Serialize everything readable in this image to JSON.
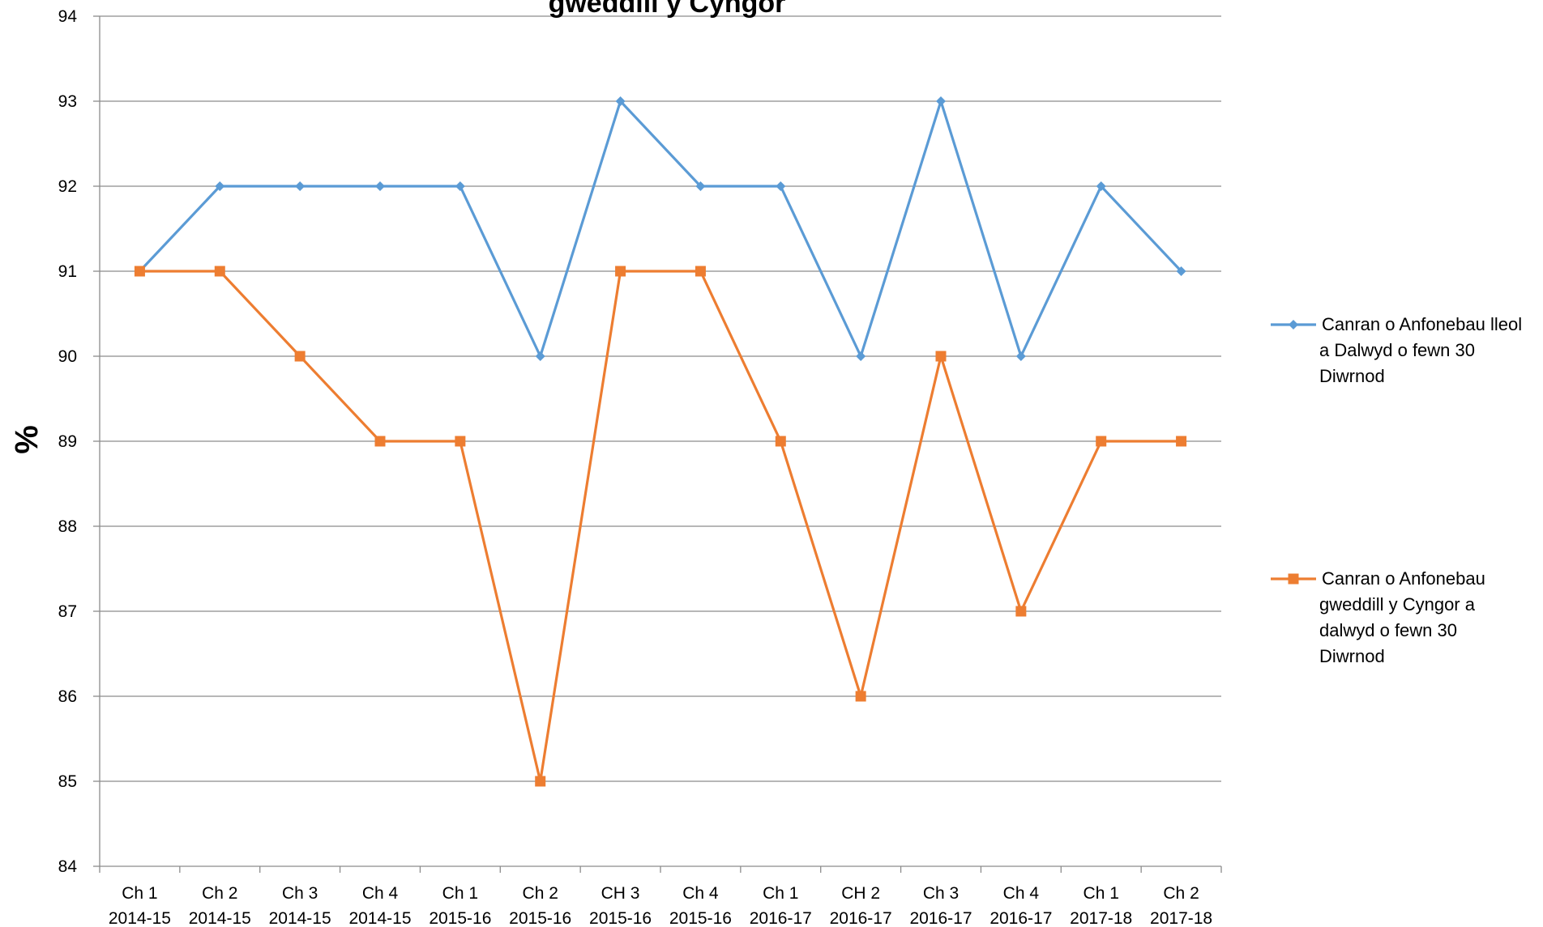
{
  "chart_data": {
    "type": "line",
    "title": "gweddill y Cyngor",
    "xlabel": "",
    "ylabel": "%",
    "ylim": [
      84,
      94
    ],
    "yticks": [
      84,
      85,
      86,
      87,
      88,
      89,
      90,
      91,
      92,
      93,
      94
    ],
    "grid": true,
    "legend_position": "right",
    "categories": [
      [
        "Ch 1",
        "2014-15"
      ],
      [
        "Ch 2",
        "2014-15"
      ],
      [
        "Ch 3",
        "2014-15"
      ],
      [
        "Ch 4",
        "2014-15"
      ],
      [
        "Ch 1",
        "2015-16"
      ],
      [
        "Ch 2",
        "2015-16"
      ],
      [
        "CH 3",
        "2015-16"
      ],
      [
        "Ch 4",
        "2015-16"
      ],
      [
        "Ch 1",
        "2016-17"
      ],
      [
        "CH 2",
        "2016-17"
      ],
      [
        "Ch 3",
        "2016-17"
      ],
      [
        "Ch 4",
        "2016-17"
      ],
      [
        "Ch 1",
        "2017-18"
      ],
      [
        "Ch 2",
        "2017-18"
      ]
    ],
    "series": [
      {
        "name": "Canran o Anfonebau lleol a Dalwyd o fewn 30 Diwrnod",
        "legend_lines": [
          "Canran o Anfonebau lleol",
          "a Dalwyd o fewn 30",
          "Diwrnod"
        ],
        "color": "#5B9BD5",
        "marker": "diamond",
        "values": [
          91,
          92,
          92,
          92,
          92,
          90,
          93,
          92,
          92,
          90,
          93,
          90,
          92,
          91
        ]
      },
      {
        "name": "Canran o Anfonebau gweddill y Cyngor a dalwyd o fewn 30 Diwrnod",
        "legend_lines": [
          "Canran o Anfonebau",
          "gweddill y Cyngor a",
          "dalwyd o fewn 30",
          "Diwrnod"
        ],
        "color": "#ED7D31",
        "marker": "square",
        "values": [
          91,
          91,
          90,
          89,
          89,
          85,
          91,
          91,
          89,
          86,
          90,
          87,
          89,
          89
        ]
      }
    ]
  }
}
